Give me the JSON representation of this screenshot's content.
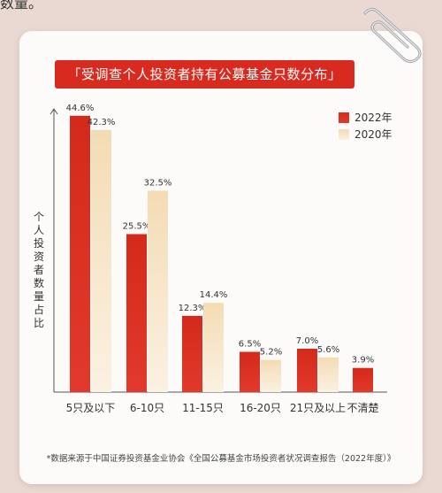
{
  "header_fragment": "数量。",
  "title": "「受调查个人投资者持有公募基金只数分布」",
  "ylabel": "个人投资者数量占比",
  "source_note": "*数据来源于中国证券投资基金业协会《全国公募基金市场投资者状况调查报告（2022年度）》",
  "colors": {
    "title_bg": "#d92a1f",
    "series_2022": "#d92a1f",
    "series_2020_top": "#f3dcb4",
    "series_2020_bottom": "#fbf1e2",
    "card_bg": "#fcfbfa",
    "page_bg": "#ead9d3"
  },
  "icons": {
    "paperclip": "paperclip-icon"
  },
  "chart_data": {
    "type": "bar",
    "title": "「受调查个人投资者持有公募基金只数分布」",
    "xlabel": "",
    "ylabel": "个人投资者数量占比",
    "ylim": [
      0,
      50
    ],
    "grid": false,
    "legend_position": "top-right",
    "categories": [
      "5只及以下",
      "6-10只",
      "11-15只",
      "16-20只",
      "21只及以上",
      "不清楚"
    ],
    "series": [
      {
        "name": "2022年",
        "values": [
          44.6,
          25.5,
          12.3,
          6.5,
          7.0,
          3.9
        ],
        "labels": [
          "44.6%",
          "25.5%",
          "12.3%",
          "6.5%",
          "7.0%",
          "3.9%"
        ]
      },
      {
        "name": "2020年",
        "values": [
          42.3,
          32.5,
          14.4,
          5.2,
          5.6,
          null
        ],
        "labels": [
          "42.3%",
          "32.5%",
          "14.4%",
          "5.2%",
          "5.6%",
          ""
        ]
      }
    ]
  }
}
